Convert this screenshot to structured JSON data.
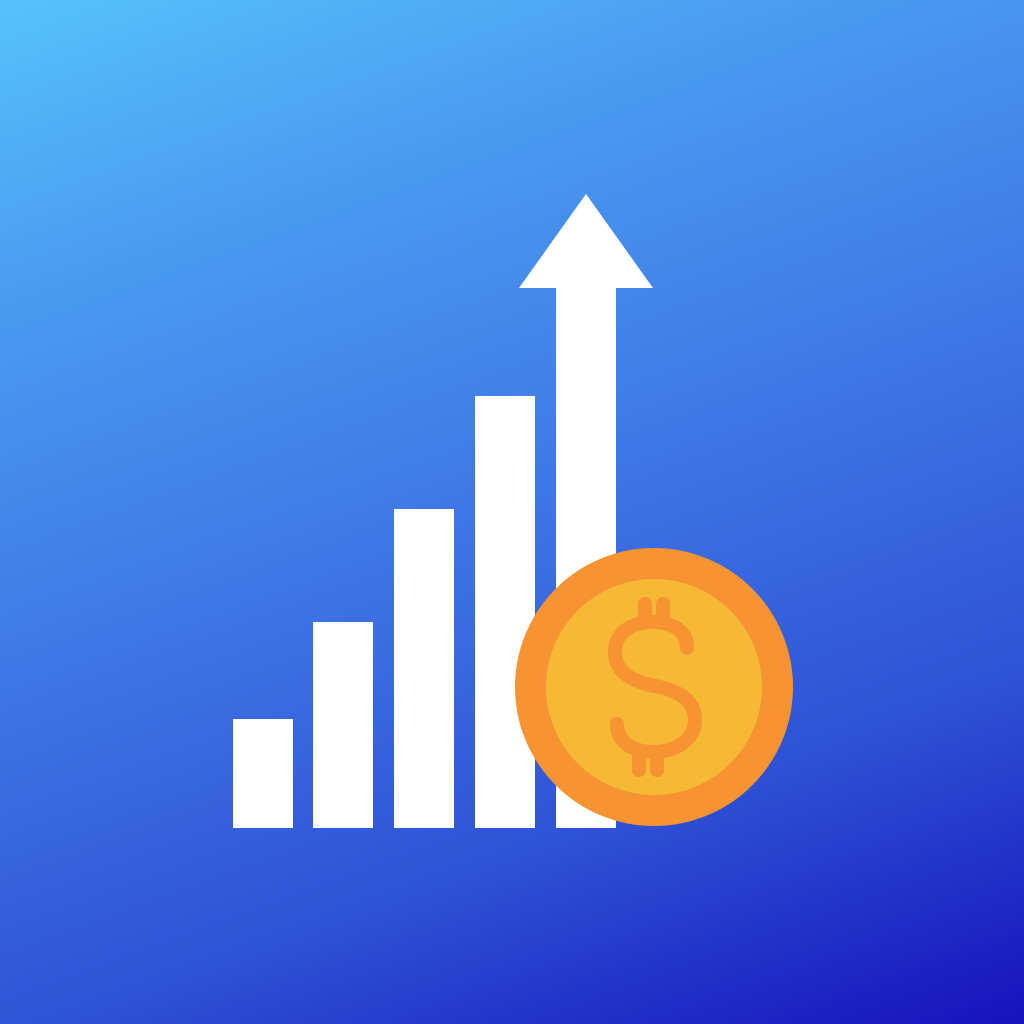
{
  "icon": {
    "semantic": "revenue-growth-app-icon",
    "colors": {
      "gradient_top": "#56c2fb",
      "gradient_bottom": "#1612bc",
      "bars": "#ffffff",
      "coin_outer": "#f69333",
      "coin_inner": "#f7b935",
      "coin_symbol": "#f69333"
    },
    "elements": [
      "bar-chart-icon",
      "up-arrow-icon",
      "dollar-coin-icon"
    ]
  }
}
